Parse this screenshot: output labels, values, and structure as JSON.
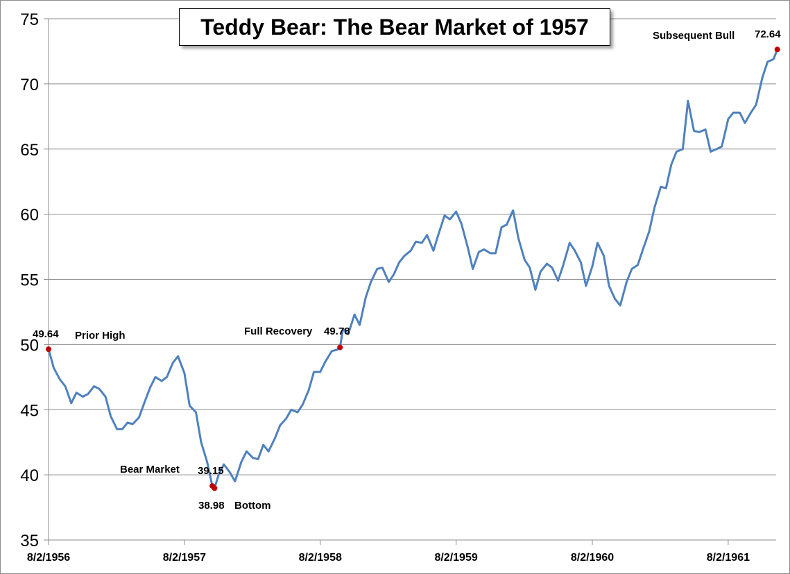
{
  "chart_data": {
    "type": "line",
    "title": "Teddy Bear: The Bear Market of 1957",
    "xlabel": "",
    "ylabel": "",
    "ylim": [
      35,
      75
    ],
    "yticks": [
      "35",
      "40",
      "45",
      "50",
      "55",
      "60",
      "65",
      "70",
      "75"
    ],
    "xticks": [
      "8/2/1956",
      "8/2/1957",
      "8/2/1958",
      "8/2/1959",
      "8/2/1960",
      "8/2/1961"
    ],
    "xtick_dates": [
      "1956-08-02",
      "1957-08-02",
      "1958-08-02",
      "1959-08-02",
      "1960-08-02",
      "1961-08-02"
    ],
    "grid": "horizontal",
    "line_color": "#4f81bd",
    "marker_color": "#c00000",
    "series": [
      {
        "dates": [
          "1956-08-02",
          "1956-08-16",
          "1956-09-02",
          "1956-09-16",
          "1956-10-02",
          "1956-10-16",
          "1956-11-02",
          "1956-11-16",
          "1956-12-02",
          "1956-12-16",
          "1957-01-02",
          "1957-01-16",
          "1957-02-02",
          "1957-02-16",
          "1957-03-02",
          "1957-03-16",
          "1957-04-02",
          "1957-04-16",
          "1957-05-02",
          "1957-05-16",
          "1957-06-02",
          "1957-06-16",
          "1957-07-02",
          "1957-07-16",
          "1957-08-02",
          "1957-08-16",
          "1957-09-02",
          "1957-09-16",
          "1957-10-02",
          "1957-10-16",
          "1957-10-22",
          "1957-11-02",
          "1957-11-16",
          "1957-12-02",
          "1957-12-16",
          "1958-01-02",
          "1958-01-16",
          "1958-02-02",
          "1958-02-16",
          "1958-03-02",
          "1958-03-16",
          "1958-04-02",
          "1958-04-16",
          "1958-05-02",
          "1958-05-16",
          "1958-06-02",
          "1958-06-16",
          "1958-07-02",
          "1958-07-16",
          "1958-08-02",
          "1958-08-16",
          "1958-09-02",
          "1958-09-16",
          "1958-09-24",
          "1958-10-02",
          "1958-10-16",
          "1958-11-02",
          "1958-11-16",
          "1958-12-02",
          "1958-12-16",
          "1959-01-02",
          "1959-01-16",
          "1959-02-02",
          "1959-02-16",
          "1959-03-02",
          "1959-03-16",
          "1959-04-02",
          "1959-04-16",
          "1959-05-02",
          "1959-05-16",
          "1959-06-02",
          "1959-06-16",
          "1959-07-02",
          "1959-07-16",
          "1959-08-02",
          "1959-08-16",
          "1959-09-02",
          "1959-09-16",
          "1959-10-02",
          "1959-10-16",
          "1959-11-02",
          "1959-11-16",
          "1959-12-02",
          "1959-12-16",
          "1960-01-02",
          "1960-01-16",
          "1960-02-02",
          "1960-02-16",
          "1960-03-02",
          "1960-03-16",
          "1960-04-02",
          "1960-04-16",
          "1960-05-02",
          "1960-05-16",
          "1960-06-02",
          "1960-06-16",
          "1960-07-02",
          "1960-07-16",
          "1960-08-02",
          "1960-08-16",
          "1960-09-02",
          "1960-09-16",
          "1960-10-02",
          "1960-10-16",
          "1960-11-02",
          "1960-11-16",
          "1960-12-02",
          "1960-12-16",
          "1961-01-02",
          "1961-01-16",
          "1961-02-02",
          "1961-02-16",
          "1961-03-02",
          "1961-03-16",
          "1961-04-02",
          "1961-04-16",
          "1961-05-02",
          "1961-05-16",
          "1961-06-02",
          "1961-06-16",
          "1961-07-02",
          "1961-07-16",
          "1961-08-02",
          "1961-08-16",
          "1961-09-02",
          "1961-09-16",
          "1961-10-02",
          "1961-10-16",
          "1961-11-02",
          "1961-11-16",
          "1961-12-02",
          "1961-12-12"
        ],
        "values": [
          49.64,
          48.2,
          47.3,
          46.8,
          45.5,
          46.3,
          46.0,
          46.2,
          46.8,
          46.6,
          46.0,
          44.5,
          43.5,
          43.5,
          44.0,
          43.9,
          44.4,
          45.5,
          46.7,
          47.5,
          47.2,
          47.5,
          48.6,
          49.1,
          47.8,
          45.3,
          44.8,
          42.5,
          41.0,
          39.15,
          38.98,
          40.0,
          40.8,
          40.2,
          39.5,
          41.0,
          41.8,
          41.3,
          41.2,
          42.3,
          41.8,
          42.8,
          43.8,
          44.3,
          45.0,
          44.8,
          45.4,
          46.5,
          47.9,
          47.9,
          48.7,
          49.5,
          49.6,
          49.78,
          51.2,
          50.8,
          52.3,
          51.5,
          53.6,
          54.8,
          55.8,
          55.9,
          54.8,
          55.4,
          56.3,
          56.8,
          57.2,
          57.9,
          57.8,
          58.4,
          57.2,
          58.5,
          59.9,
          59.6,
          60.2,
          59.3,
          57.5,
          55.8,
          57.1,
          57.3,
          57.0,
          57.0,
          59.0,
          59.2,
          60.3,
          58.2,
          56.5,
          55.9,
          54.2,
          55.6,
          56.2,
          55.9,
          54.9,
          56.1,
          57.8,
          57.2,
          56.3,
          54.5,
          56.0,
          57.8,
          56.8,
          54.5,
          53.5,
          53.0,
          54.8,
          55.8,
          56.1,
          57.3,
          58.7,
          60.5,
          62.1,
          62.0,
          63.8,
          64.8,
          65.0,
          68.7,
          66.4,
          66.3,
          66.5,
          64.8,
          65.0,
          65.2,
          67.3,
          67.8,
          67.8,
          67.0,
          67.8,
          68.4,
          70.5,
          71.7,
          71.9,
          72.64
        ]
      }
    ],
    "annotations": [
      {
        "date": "1956-08-02",
        "value": 49.64,
        "value_label": "49.64",
        "text": "Prior High"
      },
      {
        "date": "1957-10-16",
        "value": 39.15,
        "value_label": "39.15",
        "text": "Bear Market"
      },
      {
        "date": "1957-10-22",
        "value": 38.98,
        "value_label": "38.98",
        "text": "Bottom"
      },
      {
        "date": "1958-09-24",
        "value": 49.78,
        "value_label": "49.78",
        "text": "Full Recovery"
      },
      {
        "date": "1961-12-12",
        "value": 72.64,
        "value_label": "72.64",
        "text": "Subsequent Bull"
      }
    ]
  }
}
